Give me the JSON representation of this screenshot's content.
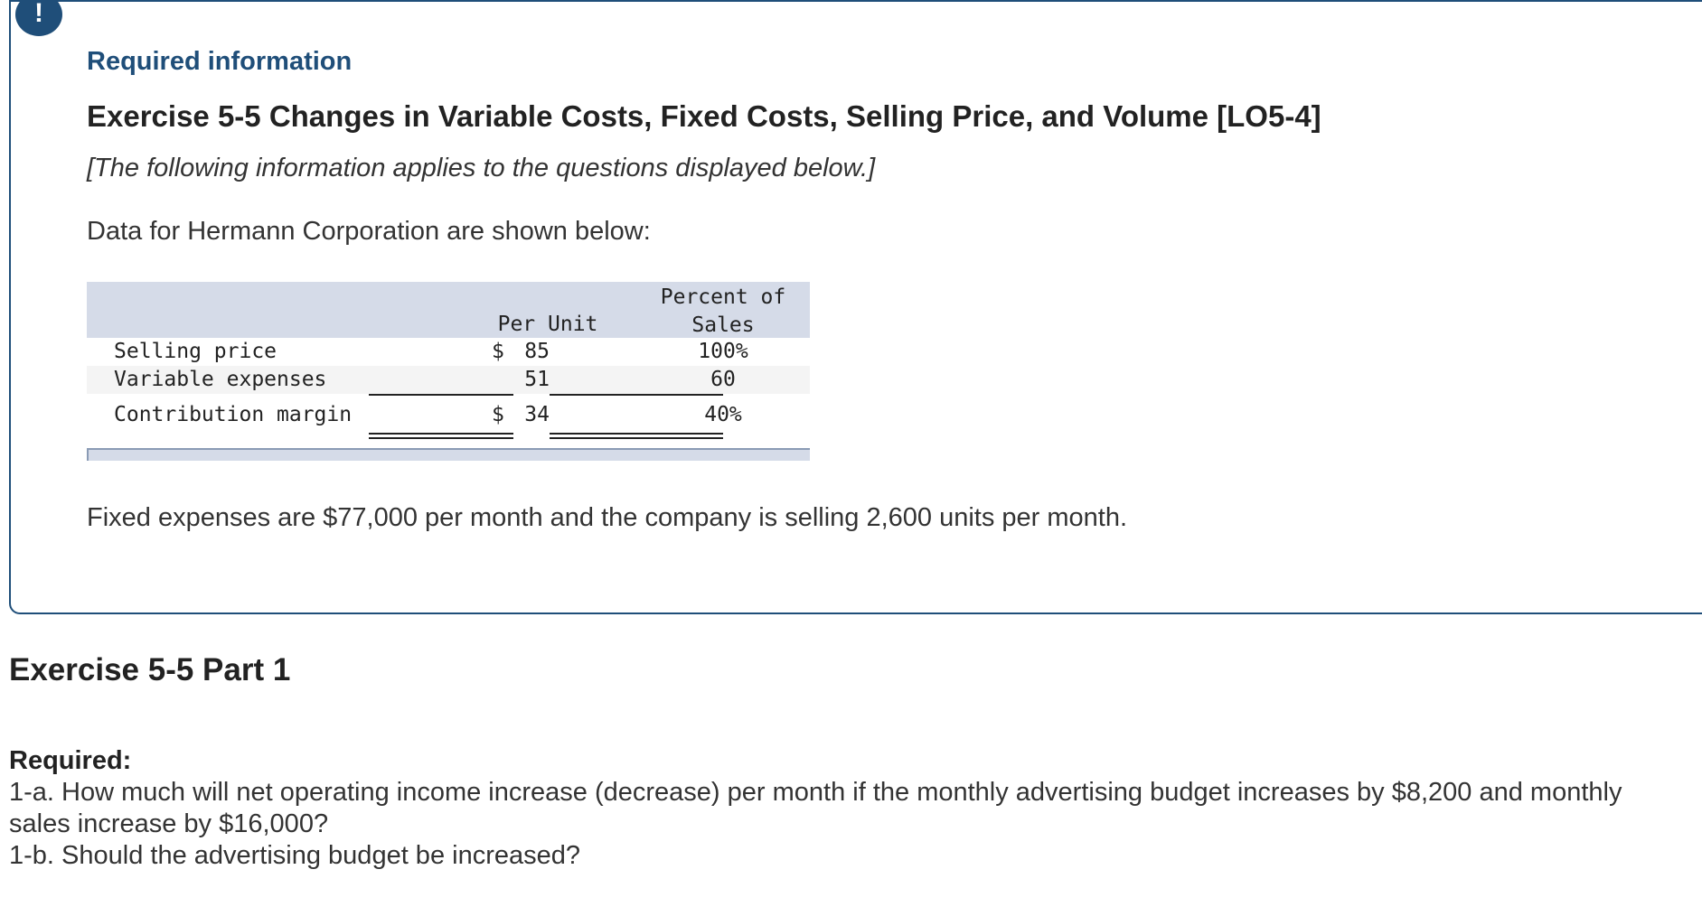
{
  "info_box": {
    "badge": "!",
    "required_information": "Required information",
    "exercise_title": "Exercise 5-5 Changes in Variable Costs, Fixed Costs, Selling Price, and Volume [LO5-4]",
    "applies_note": "[The following information applies to the questions displayed below.]",
    "data_intro": "Data for Hermann Corporation are shown below:",
    "table": {
      "headers": {
        "per_unit": "Per Unit",
        "percent_line1": "Percent of",
        "percent_line2": "Sales"
      },
      "rows": [
        {
          "label": "Selling price",
          "currency": "$",
          "unit": "85",
          "percent": "100%"
        },
        {
          "label": "Variable expenses",
          "currency": "",
          "unit": "51",
          "percent": "60"
        },
        {
          "label": "Contribution margin",
          "currency": "$",
          "unit": "34",
          "percent": "40%"
        }
      ]
    },
    "fixed_note": "Fixed expenses are $77,000 per month and the company is selling 2,600 units per month."
  },
  "part": {
    "heading": "Exercise 5-5 Part 1",
    "required_label": "Required:",
    "q1a": "1-a. How much will net operating income increase (decrease) per month if the monthly advertising budget increases by $8,200 and monthly sales increase by $16,000?",
    "q1b": "1-b. Should the advertising budget be increased?"
  },
  "colors": {
    "accent": "#1f4e79",
    "table_header_bg": "#d5dbe8"
  }
}
